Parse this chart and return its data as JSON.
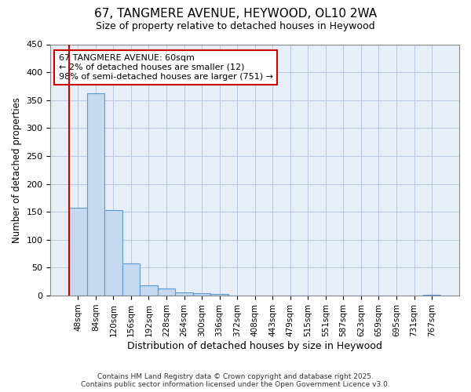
{
  "title": "67, TANGMERE AVENUE, HEYWOOD, OL10 2WA",
  "subtitle": "Size of property relative to detached houses in Heywood",
  "xlabel": "Distribution of detached houses by size in Heywood",
  "ylabel": "Number of detached properties",
  "categories": [
    "48sqm",
    "84sqm",
    "120sqm",
    "156sqm",
    "192sqm",
    "228sqm",
    "264sqm",
    "300sqm",
    "336sqm",
    "372sqm",
    "408sqm",
    "443sqm",
    "479sqm",
    "515sqm",
    "551sqm",
    "587sqm",
    "623sqm",
    "659sqm",
    "695sqm",
    "731sqm",
    "767sqm"
  ],
  "values": [
    157,
    362,
    153,
    57,
    19,
    13,
    6,
    5,
    3,
    0,
    0,
    0,
    0,
    0,
    0,
    0,
    0,
    0,
    0,
    0,
    1
  ],
  "bar_color": "#c5d9f0",
  "bar_edge_color": "#5b9bd5",
  "subject_line_color": "#cc0000",
  "ylim": [
    0,
    450
  ],
  "yticks": [
    0,
    50,
    100,
    150,
    200,
    250,
    300,
    350,
    400,
    450
  ],
  "annotation_text": "67 TANGMERE AVENUE: 60sqm\n← 2% of detached houses are smaller (12)\n98% of semi-detached houses are larger (751) →",
  "annotation_box_color": "#ffffff",
  "annotation_box_edge_color": "#cc0000",
  "footer_text": "Contains HM Land Registry data © Crown copyright and database right 2025.\nContains public sector information licensed under the Open Government Licence v3.0.",
  "bg_color": "#ffffff",
  "plot_bg_color": "#e8eef8",
  "grid_color": "#b8c8e0"
}
